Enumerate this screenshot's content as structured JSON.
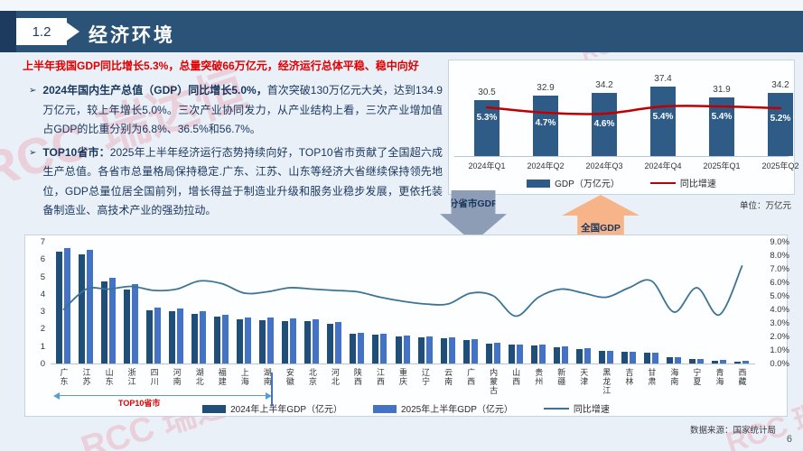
{
  "header": {
    "section_number": "1.2",
    "title": "经济环境"
  },
  "intro": {
    "headline": "上半年我国GDP同比增长5.3%，总量突破66万亿元，经济运行总体平稳、稳中向好",
    "marker": "➢",
    "bullets": [
      {
        "bold": "2024年国内生产总值（GDP）同比增长5.0%，",
        "text": "首次突破130万亿元大关，达到134.9万亿元，较上年增长5.0%。三次产业协同发力，从产业结构上看，三次产业增加值占GDP的比重分别为6.8%、36.5%和56.7%。"
      },
      {
        "bold": "TOP10省市：",
        "text": "2025年上半年经济运行态势持续向好，TOP10省市贡献了全国超六成生产总值。各省市总量格局保持稳定.广东、江苏、山东等经济大省继续保持领先地位，GDP总量位居全国前列，增长得益于制造业升级和服务业稳步发展，更依托装备制造业、高技术产业的强劲拉动。"
      }
    ]
  },
  "arrows": {
    "down_label": "分省市GDP",
    "up_label": "全国GDP"
  },
  "footer": {
    "source": "数据来源：国家统计局",
    "page": "6"
  },
  "watermark": {
    "text": "RCC 瑞达恒"
  },
  "colors": {
    "banner": "#2B5277",
    "accent_red": "#E00000",
    "bar_quarter": "#2E5C87",
    "line_red": "#C00000",
    "bar_2024": "#1F4E79",
    "bar_2025": "#4472C4",
    "line_blue": "#3D7394",
    "bracket_blue": "#5B9BD5",
    "arrow_down_fill": "#8C9DB5",
    "arrow_up_fill": "#F6B488"
  },
  "chart_data": [
    {
      "id": "national-quarterly-gdp",
      "type": "bar",
      "categories": [
        "2024年Q1",
        "2024年Q2",
        "2024年Q3",
        "2024年Q4",
        "2025年Q1",
        "2025年Q2"
      ],
      "series": [
        {
          "name": "GDP（万亿元）",
          "type": "bar",
          "values": [
            30.5,
            32.9,
            34.2,
            37.4,
            31.9,
            34.2
          ]
        },
        {
          "name": "同比增速",
          "type": "line",
          "unit": "%",
          "values": [
            5.3,
            4.7,
            4.6,
            5.4,
            5.4,
            5.2
          ]
        }
      ],
      "unit_note": "单位：万亿元",
      "legend_position": "bottom",
      "grid": false
    },
    {
      "id": "province-half-year-gdp",
      "type": "bar",
      "title_annotation": "TOP10省市",
      "categories": [
        "广东",
        "江苏",
        "山东",
        "浙江",
        "四川",
        "河南",
        "湖北",
        "福建",
        "上海",
        "湖南",
        "安徽",
        "北京",
        "河北",
        "陕西",
        "江西",
        "重庆",
        "辽宁",
        "云南",
        "广西",
        "内蒙古",
        "山西",
        "贵州",
        "新疆",
        "天津",
        "黑龙江",
        "吉林",
        "甘肃",
        "海南",
        "宁夏",
        "青海",
        "西藏"
      ],
      "series": [
        {
          "name": "2024年上半年GDP（亿元）",
          "type": "bar",
          "values": [
            6.45,
            6.25,
            4.7,
            4.25,
            3.05,
            3.02,
            2.85,
            2.7,
            2.52,
            2.5,
            2.46,
            2.42,
            2.28,
            1.72,
            1.66,
            1.55,
            1.52,
            1.47,
            1.35,
            1.12,
            1.08,
            1.02,
            0.93,
            0.82,
            0.72,
            0.66,
            0.6,
            0.34,
            0.25,
            0.18,
            0.12
          ]
        },
        {
          "name": "2025年上半年GDP（亿元）",
          "type": "bar",
          "values": [
            6.65,
            6.55,
            4.95,
            4.55,
            3.2,
            3.15,
            3.0,
            2.82,
            2.65,
            2.62,
            2.58,
            2.52,
            2.38,
            1.78,
            1.72,
            1.6,
            1.57,
            1.52,
            1.4,
            1.17,
            1.1,
            1.07,
            0.98,
            0.86,
            0.75,
            0.69,
            0.64,
            0.36,
            0.26,
            0.19,
            0.13
          ]
        },
        {
          "name": "同比增速",
          "type": "line",
          "unit": "%",
          "values": [
            4.0,
            5.5,
            5.5,
            5.7,
            5.4,
            5.5,
            6.1,
            5.9,
            5.2,
            5.3,
            5.6,
            5.5,
            5.4,
            5.3,
            4.9,
            4.6,
            4.4,
            4.4,
            5.2,
            5.0,
            3.5,
            4.9,
            5.5,
            5.2,
            4.9,
            5.6,
            6.1,
            3.8,
            5.6,
            3.6,
            7.2
          ]
        }
      ],
      "left_axis": {
        "ticks": [
          "7",
          "6",
          "5",
          "4",
          "3",
          "2",
          "1",
          "0"
        ],
        "range": [
          0,
          7
        ]
      },
      "right_axis": {
        "ticks": [
          "9.0%",
          "8.0%",
          "7.0%",
          "6.0%",
          "5.0%",
          "4.0%",
          "3.0%",
          "2.0%",
          "1.0%",
          "0.0%"
        ],
        "range": [
          0,
          9
        ]
      },
      "top10_span": [
        0,
        9
      ],
      "grid": false,
      "legend_position": "bottom"
    }
  ]
}
